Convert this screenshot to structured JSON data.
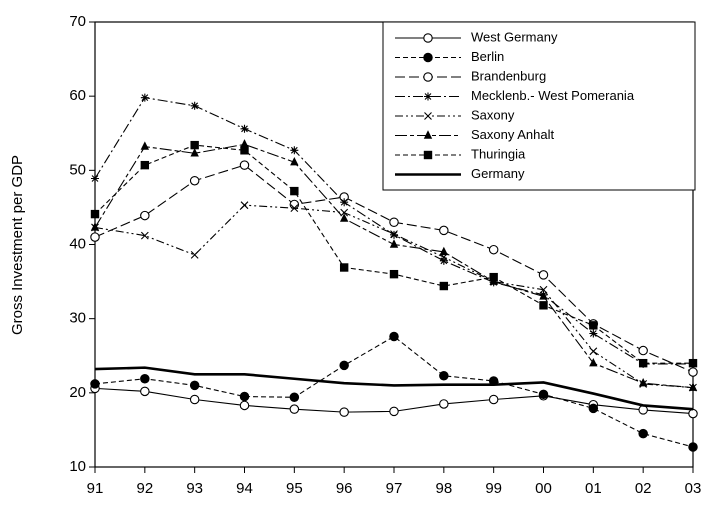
{
  "chart_data": {
    "type": "line",
    "y_label": "Gross Investment per GDP",
    "categories": [
      "91",
      "92",
      "93",
      "94",
      "95",
      "96",
      "97",
      "98",
      "99",
      "00",
      "01",
      "02",
      "03"
    ],
    "ylim": [
      10,
      70
    ],
    "yticks": [
      10,
      20,
      30,
      40,
      50,
      60,
      70
    ],
    "legend": "upper right",
    "series": [
      {
        "name": "West Germany",
        "color": "#000000",
        "marker": "circle-open",
        "line_style": "solid",
        "values": [
          20.6,
          20.2,
          19.1,
          18.3,
          17.8,
          17.4,
          17.5,
          18.5,
          19.1,
          19.6,
          18.4,
          17.7,
          17.2
        ]
      },
      {
        "name": "Berlin",
        "color": "#000000",
        "marker": "circle-filled",
        "line_style": "dashed",
        "values": [
          21.2,
          21.9,
          21.0,
          19.5,
          19.4,
          23.7,
          27.6,
          22.3,
          21.6,
          19.8,
          17.9,
          14.5,
          12.7
        ]
      },
      {
        "name": "Brandenburg",
        "color": "#000000",
        "marker": "circle-open",
        "line_style": "long-dash",
        "values": [
          41.0,
          43.9,
          48.6,
          50.7,
          45.4,
          46.4,
          43.0,
          41.9,
          39.3,
          35.9,
          29.3,
          25.7,
          22.8
        ]
      },
      {
        "name": "Mecklenb.- West Pomerania",
        "color": "#000000",
        "marker": "asterisk",
        "line_style": "dash-dot",
        "values": [
          48.9,
          59.8,
          58.7,
          55.6,
          52.7,
          45.7,
          41.3,
          37.8,
          34.9,
          33.2,
          28.0,
          23.9,
          23.9
        ]
      },
      {
        "name": "Saxony",
        "color": "#000000",
        "marker": "x",
        "line_style": "dash-dot-dot",
        "values": [
          42.3,
          41.2,
          38.6,
          45.3,
          44.9,
          44.3,
          41.4,
          38.3,
          35.0,
          33.9,
          25.6,
          21.2,
          20.7
        ]
      },
      {
        "name": "Saxony Anhalt",
        "color": "#000000",
        "marker": "triangle",
        "line_style": "long-dash-dash",
        "values": [
          42.3,
          53.2,
          52.3,
          53.5,
          51.1,
          43.5,
          40.0,
          39.0,
          35.0,
          33.0,
          24.0,
          21.3,
          20.7
        ]
      },
      {
        "name": "Thuringia",
        "color": "#000000",
        "marker": "square",
        "line_style": "dashed",
        "values": [
          44.1,
          50.7,
          53.4,
          52.7,
          47.2,
          36.9,
          36.0,
          34.4,
          35.6,
          31.8,
          29.1,
          24.0,
          24.0
        ]
      },
      {
        "name": "Germany",
        "color": "#000000",
        "marker": "none",
        "line_style": "thick",
        "values": [
          23.2,
          23.4,
          22.5,
          22.5,
          21.9,
          21.3,
          21.0,
          21.1,
          21.1,
          21.4,
          19.9,
          18.3,
          17.8
        ]
      }
    ]
  }
}
